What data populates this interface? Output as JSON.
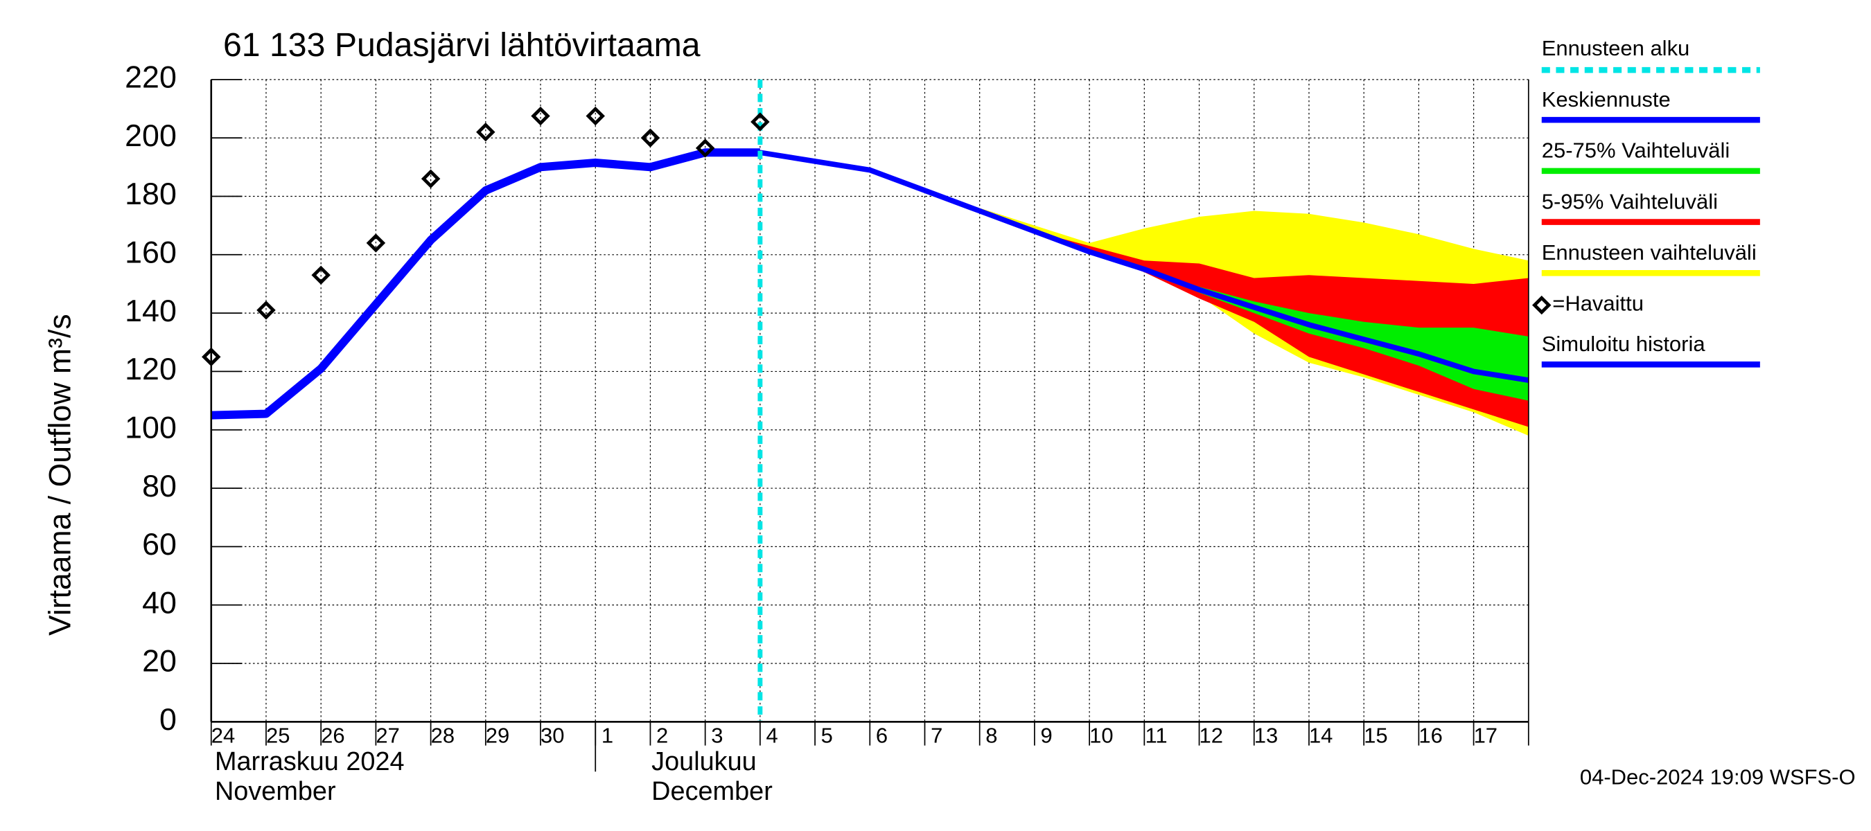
{
  "chart_data": {
    "type": "line",
    "title": "61 133 Pudasjärvi lähtövirtaama",
    "y_label": "Virtaama / Outflow   m³/s",
    "months": [
      [
        "Marraskuu 2024",
        "November"
      ],
      [
        "Joulukuu",
        "December"
      ]
    ],
    "footer": "04-Dec-2024 19:09 WSFS-O",
    "categories": [
      "24",
      "25",
      "26",
      "27",
      "28",
      "29",
      "30",
      "1",
      "2",
      "3",
      "4",
      "5",
      "6",
      "7",
      "8",
      "9",
      "10",
      "11",
      "12",
      "13",
      "14",
      "15",
      "16",
      "17",
      null
    ],
    "ylim": [
      0,
      220
    ],
    "yticks": [
      0,
      20,
      40,
      60,
      80,
      100,
      120,
      140,
      160,
      180,
      200,
      220
    ],
    "grid": true,
    "forecast_start": {
      "name": "Ennusteen alku",
      "color": "#00e5e5"
    },
    "series": [
      {
        "name": "Ennusteen vaihteluväli",
        "kind": "band",
        "color": "#ffff00",
        "upper": [
          null,
          null,
          null,
          null,
          null,
          null,
          null,
          null,
          null,
          null,
          195,
          192,
          189,
          182,
          176,
          170,
          164,
          169,
          173,
          175,
          174,
          171,
          167,
          162,
          158
        ],
        "lower": [
          null,
          null,
          null,
          null,
          null,
          null,
          null,
          null,
          null,
          null,
          195,
          192,
          189,
          182,
          175,
          168,
          161,
          155,
          146,
          133,
          123,
          118,
          112,
          106,
          98
        ]
      },
      {
        "name": "5-95% Vaihteluväli",
        "kind": "band",
        "color": "#ff0000",
        "upper": [
          null,
          null,
          null,
          null,
          null,
          null,
          null,
          null,
          null,
          null,
          null,
          null,
          null,
          null,
          null,
          168,
          163,
          158,
          157,
          152,
          153,
          152,
          151,
          150,
          152
        ],
        "lower": [
          null,
          null,
          null,
          null,
          null,
          null,
          null,
          null,
          null,
          null,
          null,
          null,
          null,
          null,
          null,
          168,
          161,
          154,
          145,
          137,
          125,
          119,
          113,
          107,
          101
        ]
      },
      {
        "name": "25-75% Vaihteluväli",
        "kind": "band",
        "color": "#00ee00",
        "upper": [
          null,
          null,
          null,
          null,
          null,
          null,
          null,
          null,
          null,
          null,
          null,
          null,
          null,
          null,
          null,
          168,
          161,
          155,
          149,
          144,
          140,
          137,
          135,
          135,
          132
        ],
        "lower": [
          null,
          null,
          null,
          null,
          null,
          null,
          null,
          null,
          null,
          null,
          null,
          null,
          null,
          null,
          null,
          168,
          161,
          155,
          147,
          140,
          133,
          128,
          122,
          114,
          110
        ]
      },
      {
        "name": "Simuloitu historia",
        "kind": "line",
        "color": "#0000ff",
        "values": [
          105,
          105.5,
          121,
          143,
          165,
          182,
          190,
          191.5,
          190,
          195,
          195,
          null,
          null,
          null,
          null,
          null,
          null,
          null,
          null,
          null,
          null,
          null,
          null,
          null,
          null
        ]
      },
      {
        "name": "Keskiennuste",
        "kind": "line",
        "color": "#0000ff",
        "values": [
          null,
          null,
          null,
          null,
          null,
          null,
          null,
          null,
          null,
          null,
          195,
          192,
          189,
          182,
          175,
          168,
          161,
          155,
          148,
          142,
          136,
          131,
          126,
          120,
          117
        ]
      },
      {
        "name": "=Havaittu",
        "kind": "scatter",
        "color": "#000000",
        "values": [
          125,
          141,
          153,
          164,
          186,
          202,
          207.5,
          207.5,
          200,
          196.5,
          205.5,
          null,
          null,
          null,
          null,
          null,
          null,
          null,
          null,
          null,
          null,
          null,
          null,
          null,
          null
        ]
      }
    ]
  }
}
